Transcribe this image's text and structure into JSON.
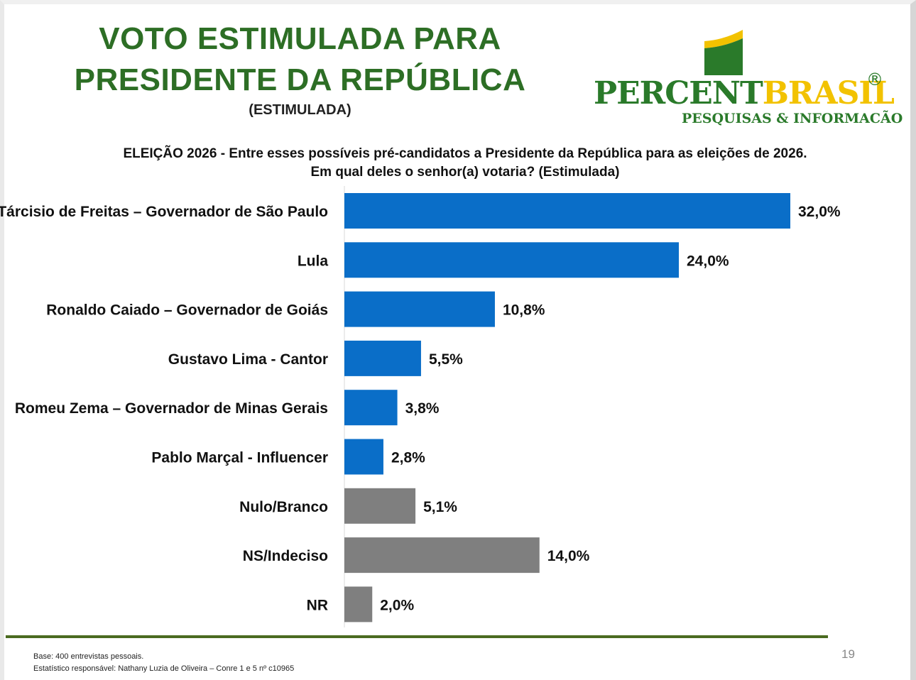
{
  "header": {
    "title_line1": "VOTO ESTIMULADA PARA",
    "title_line2": "PRESIDENTE DA REPÚBLICA",
    "subtitle": "(ESTIMULADA)"
  },
  "logo": {
    "word_part1": "PERCENT",
    "word_part2": "BRASIL",
    "registered": "®",
    "tagline": "PESQUISAS & INFORMACÃO",
    "colors": {
      "green": "#2a7a2a",
      "yellow": "#f2c200"
    }
  },
  "question": {
    "line1": "ELEIÇÃO 2026 - Entre esses possíveis pré-candidatos a Presidente da República para as eleições de 2026.",
    "line2": "Em qual deles o senhor(a) votaria? (Estimulada)"
  },
  "chart_data": {
    "type": "bar",
    "orientation": "horizontal",
    "categories": [
      "Tárcisio de Freitas – Governador de São Paulo",
      "Lula",
      "Ronaldo Caiado – Governador de Goiás",
      "Gustavo Lima - Cantor",
      "Romeu Zema – Governador de Minas Gerais",
      "Pablo Marçal - Influencer",
      "Nulo/Branco",
      "NS/Indeciso",
      "NR"
    ],
    "values": [
      32.0,
      24.0,
      10.8,
      5.5,
      3.8,
      2.8,
      5.1,
      14.0,
      2.0
    ],
    "value_labels": [
      "32,0%",
      "24,0%",
      "10,8%",
      "5,5%",
      "3,8%",
      "2,8%",
      "5,1%",
      "14,0%",
      "2,0%"
    ],
    "bar_colors": [
      "#0a6ec8",
      "#0a6ec8",
      "#0a6ec8",
      "#0a6ec8",
      "#0a6ec8",
      "#0a6ec8",
      "#7f7f7f",
      "#7f7f7f",
      "#7f7f7f"
    ],
    "xlim": [
      0,
      32.0
    ],
    "grid": false,
    "legend": "none"
  },
  "footer": {
    "base": "Base: 400 entrevistas pessoais.",
    "statistician": "Estatístico responsável: Nathany Luzia de Oliveira – Conre 1 e 5 nº c10965",
    "page_number": "19"
  }
}
